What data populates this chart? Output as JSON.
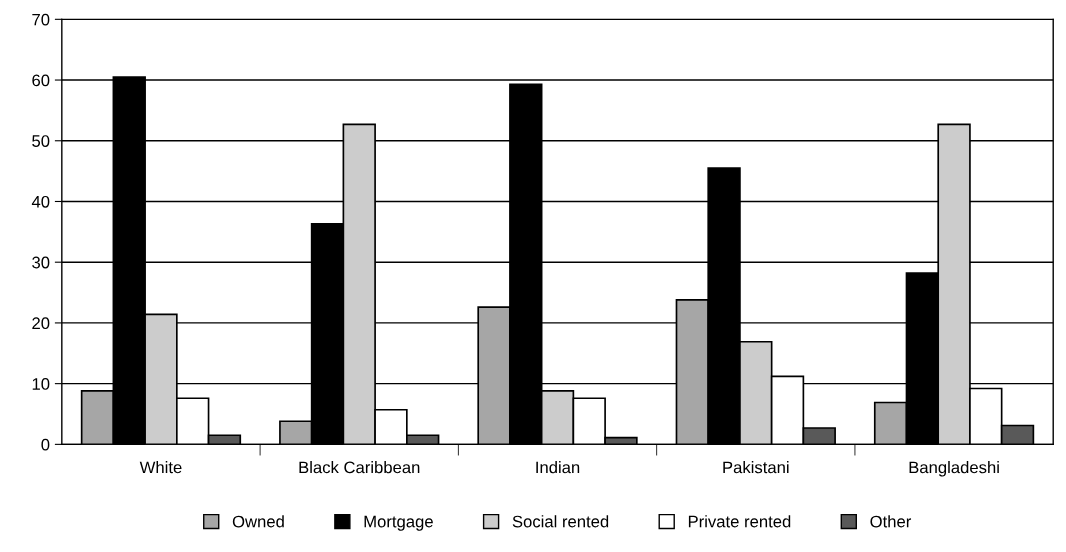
{
  "chart_data": {
    "type": "bar",
    "categories": [
      "White",
      "Black Caribbean",
      "Indian",
      "Pakistani",
      "Bangladeshi"
    ],
    "series": [
      {
        "name": "Owned",
        "color": "#a6a6a6",
        "values": [
          8.8,
          3.8,
          22.6,
          23.8,
          6.9
        ]
      },
      {
        "name": "Mortgage",
        "color": "#000000",
        "values": [
          60.5,
          36.3,
          59.3,
          45.5,
          28.2
        ]
      },
      {
        "name": "Social rented",
        "color": "#cccccc",
        "values": [
          21.4,
          52.7,
          8.8,
          16.9,
          52.7
        ]
      },
      {
        "name": "Private rented",
        "color": "#ffffff",
        "values": [
          7.6,
          5.7,
          7.6,
          11.2,
          9.2
        ]
      },
      {
        "name": "Other",
        "color": "#595959",
        "values": [
          1.5,
          1.5,
          1.1,
          2.7,
          3.1
        ]
      }
    ],
    "ylim": [
      0,
      70
    ],
    "yticks": [
      0,
      10,
      20,
      30,
      40,
      50,
      60,
      70
    ],
    "grid": "y",
    "legend": "bottom"
  }
}
